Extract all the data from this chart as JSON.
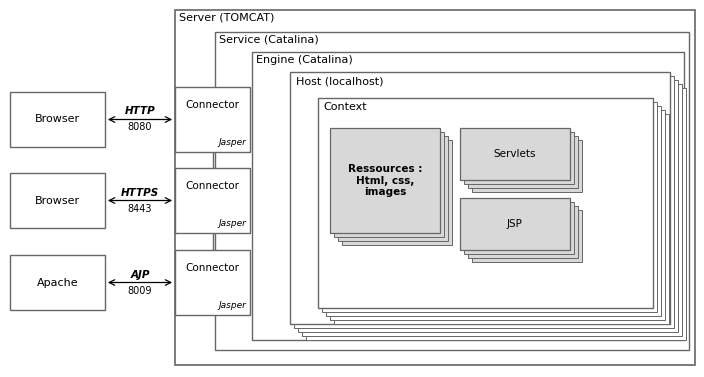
{
  "bg_color": "#ffffff",
  "border_color": "#666666",
  "light_gray": "#d8d8d8",
  "server_label": "Server (TOMCAT)",
  "service_label": "Service (Catalina)",
  "engine_label": "Engine (Catalina)",
  "host_label": "Host (localhost)",
  "context_label": "Context",
  "browser_labels": [
    "Browser",
    "Browser",
    "Apache"
  ],
  "connector_label": "Connector",
  "jasper_label": "Jasper",
  "protocol_labels": [
    "HTTP",
    "HTTPS",
    "AJP"
  ],
  "port_labels": [
    "8080",
    "8443",
    "8009"
  ],
  "resource_label": "Ressources :\nHtml, css,\nimages",
  "servlets_label": "Servlets",
  "jsp_label": "JSP",
  "figw": 7.04,
  "figh": 3.77,
  "dpi": 100
}
